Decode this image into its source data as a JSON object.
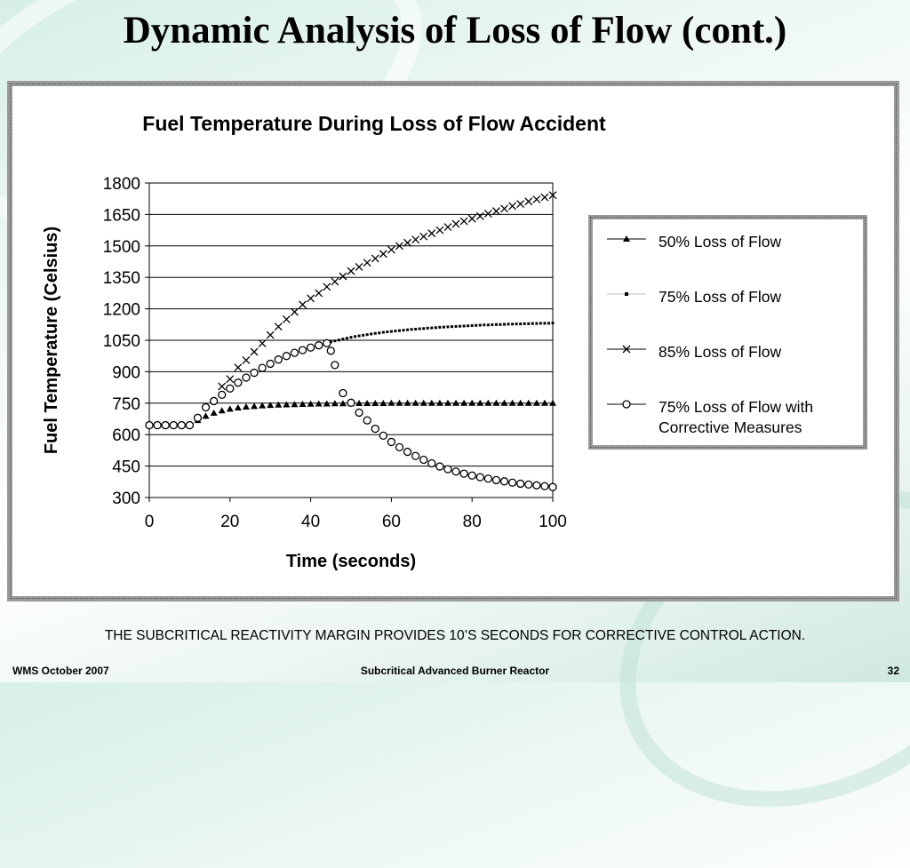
{
  "slide": {
    "title": "Dynamic Analysis of Loss of Flow (cont.)",
    "footnote": "THE SUBCRITICAL REACTIVITY MARGIN PROVIDES 10’S SECONDS FOR CORRECTIVE CONTROL ACTION.",
    "footer_left": "WMS October 2007",
    "footer_center": "Subcritical Advanced Burner Reactor",
    "footer_right": "32"
  },
  "chart_data": {
    "type": "scatter",
    "title": "Fuel Temperature During Loss of Flow Accident",
    "xlabel": "Time (seconds)",
    "ylabel": "Fuel Temperature (Celsius)",
    "xlim": [
      0,
      100
    ],
    "ylim": [
      300,
      1800
    ],
    "xticks": [
      "0",
      "20",
      "40",
      "60",
      "80",
      "100"
    ],
    "yticks": [
      "300",
      "450",
      "600",
      "750",
      "900",
      "1050",
      "1200",
      "1350",
      "1500",
      "1650",
      "1800"
    ],
    "grid": "horizontal",
    "legend_position": "right",
    "series": [
      {
        "name": "50% Loss of Flow",
        "marker": "triangle",
        "x": [
          0,
          2,
          4,
          6,
          8,
          10,
          12,
          14,
          16,
          18,
          20,
          22,
          24,
          26,
          28,
          30,
          32,
          34,
          36,
          38,
          40,
          42,
          44,
          46,
          48,
          50,
          52,
          54,
          56,
          58,
          60,
          62,
          64,
          66,
          68,
          70,
          72,
          74,
          76,
          78,
          80,
          82,
          84,
          86,
          88,
          90,
          92,
          94,
          96,
          98,
          100
        ],
        "y": [
          645,
          645,
          645,
          645,
          645,
          645,
          668,
          688,
          703,
          714,
          722,
          728,
          732,
          735,
          738,
          740,
          742,
          743,
          744,
          745,
          746,
          747,
          747,
          748,
          748,
          748,
          749,
          749,
          749,
          749,
          750,
          750,
          750,
          750,
          750,
          750,
          750,
          750,
          750,
          750,
          750,
          750,
          750,
          750,
          750,
          750,
          750,
          750,
          750,
          750,
          750
        ]
      },
      {
        "name": "75% Loss of Flow",
        "marker": "dot",
        "x": [
          45,
          46,
          47,
          48,
          49,
          50,
          51,
          52,
          53,
          54,
          55,
          56,
          57,
          58,
          59,
          60,
          61,
          62,
          63,
          64,
          65,
          66,
          67,
          68,
          69,
          70,
          71,
          72,
          73,
          74,
          75,
          76,
          77,
          78,
          79,
          80,
          81,
          82,
          83,
          84,
          85,
          86,
          87,
          88,
          89,
          90,
          91,
          92,
          93,
          94,
          95,
          96,
          97,
          98,
          99,
          100
        ],
        "y": [
          1042,
          1047,
          1051,
          1056,
          1060,
          1064,
          1068,
          1071,
          1074,
          1077,
          1080,
          1083,
          1085,
          1088,
          1090,
          1092,
          1094,
          1096,
          1098,
          1100,
          1102,
          1103,
          1105,
          1106,
          1108,
          1109,
          1110,
          1112,
          1113,
          1114,
          1115,
          1116,
          1117,
          1118,
          1119,
          1120,
          1121,
          1122,
          1123,
          1123,
          1124,
          1125,
          1125,
          1126,
          1127,
          1127,
          1128,
          1128,
          1129,
          1129,
          1130,
          1130,
          1131,
          1131,
          1131,
          1132
        ]
      },
      {
        "name": "85% Loss of Flow",
        "marker": "x",
        "x": [
          18,
          20,
          22,
          24,
          26,
          28,
          30,
          32,
          34,
          36,
          38,
          40,
          42,
          44,
          46,
          48,
          50,
          52,
          54,
          56,
          58,
          60,
          62,
          64,
          66,
          68,
          70,
          72,
          74,
          76,
          78,
          80,
          82,
          84,
          86,
          88,
          90,
          92,
          94,
          96,
          98,
          100
        ],
        "y": [
          830,
          865,
          920,
          955,
          995,
          1035,
          1075,
          1115,
          1150,
          1185,
          1220,
          1250,
          1275,
          1305,
          1330,
          1355,
          1380,
          1400,
          1420,
          1440,
          1462,
          1482,
          1500,
          1515,
          1530,
          1545,
          1560,
          1575,
          1590,
          1605,
          1618,
          1630,
          1642,
          1654,
          1666,
          1678,
          1690,
          1700,
          1712,
          1722,
          1732,
          1742
        ]
      },
      {
        "name": "75% Loss of Flow with Corrective Measures",
        "marker": "circle",
        "x": [
          0,
          2,
          4,
          6,
          8,
          10,
          12,
          14,
          16,
          18,
          20,
          22,
          24,
          26,
          28,
          30,
          32,
          34,
          36,
          38,
          40,
          42,
          44,
          45,
          46,
          48,
          50,
          52,
          54,
          56,
          58,
          60,
          62,
          64,
          66,
          68,
          70,
          72,
          74,
          76,
          78,
          80,
          82,
          84,
          86,
          88,
          90,
          92,
          94,
          96,
          98,
          100
        ],
        "y": [
          645,
          645,
          645,
          645,
          645,
          645,
          680,
          730,
          760,
          790,
          820,
          848,
          872,
          895,
          918,
          938,
          958,
          975,
          990,
          1003,
          1015,
          1026,
          1036,
          1000,
          932,
          798,
          752,
          705,
          668,
          628,
          595,
          565,
          540,
          518,
          498,
          480,
          463,
          448,
          435,
          424,
          414,
          405,
          397,
          390,
          383,
          377,
          371,
          366,
          362,
          358,
          354,
          350
        ]
      }
    ]
  }
}
